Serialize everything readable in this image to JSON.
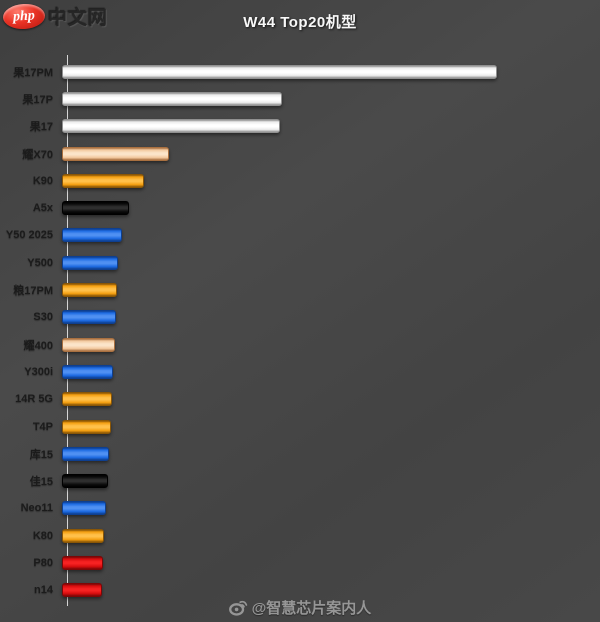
{
  "logo": {
    "php": "php",
    "suffix": "中文网"
  },
  "title": "W44 Top20机型",
  "footer": {
    "handle": "@智慧芯片案内人",
    "icon": "weibo-icon"
  },
  "chart_data": {
    "type": "bar",
    "orientation": "horizontal",
    "title": "W44 Top20机型",
    "categories": [
      "果17PM",
      "果17P",
      "果17",
      "耀X70",
      "K90",
      "A5x",
      "Y50 2025",
      "Y500",
      "粮17PM",
      "S30",
      "耀400",
      "Y300i",
      "14R 5G",
      "T4P",
      "库15",
      "佳15",
      "Neo11",
      "K80",
      "P80",
      "n14"
    ],
    "values": [
      435,
      220,
      218,
      107,
      82,
      67,
      60,
      56,
      55,
      54,
      53,
      51,
      50,
      49,
      47,
      46,
      44,
      42,
      41,
      40
    ],
    "value_units": "relative bar length (no numeric axis shown)",
    "xlim": [
      0,
      450
    ],
    "grid": false,
    "legend": false,
    "background_color": "#454545",
    "bar_styles": [
      "white",
      "white",
      "white",
      "peach",
      "orange",
      "black",
      "blue",
      "blue",
      "orange",
      "blue",
      "peach",
      "blue",
      "orange",
      "orange",
      "blue",
      "black",
      "blue",
      "orange",
      "red",
      "red"
    ],
    "styles": {
      "white": {
        "rim": "#909090",
        "base": "#ececec",
        "hi": "#ffffff"
      },
      "peach": {
        "rim": "#a97040",
        "base": "#f3c99f",
        "hi": "#fbe4c9"
      },
      "orange": {
        "rim": "#8a5606",
        "base": "#f5a011",
        "hi": "#ffc04a"
      },
      "black": {
        "rim": "#000000",
        "base": "#0b0b0b",
        "hi": "#2e2e2e"
      },
      "blue": {
        "rim": "#0e3f90",
        "base": "#1c6ae2",
        "hi": "#4f90f2"
      },
      "red": {
        "rim": "#7c0707",
        "base": "#d50d0e",
        "hi": "#f62222"
      }
    }
  }
}
